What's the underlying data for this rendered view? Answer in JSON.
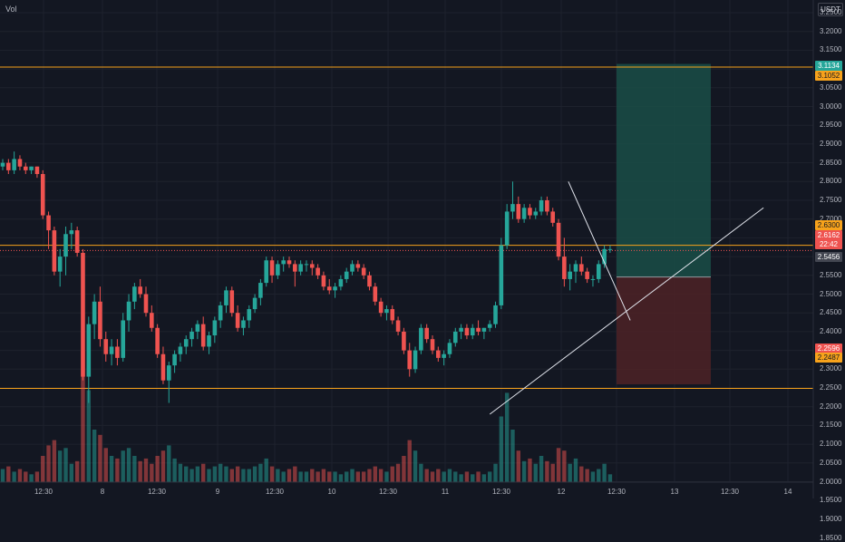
{
  "header": {
    "indicator_label": "Vol",
    "currency": "USDT"
  },
  "price_axis": [
    "3.2500",
    "3.2000",
    "3.1500",
    "3.1000",
    "3.0500",
    "3.0000",
    "2.9500",
    "2.9000",
    "2.8500",
    "2.8000",
    "2.7500",
    "2.7000",
    "2.6500",
    "2.6000",
    "2.5500",
    "2.5000",
    "2.4500",
    "2.4000",
    "2.3500",
    "2.3000",
    "2.2500",
    "2.2000",
    "2.1500",
    "2.1000",
    "2.0500",
    "2.0000",
    "1.9500",
    "1.9000",
    "1.8500"
  ],
  "time_axis": [
    "12:30",
    "8",
    "12:30",
    "9",
    "12:30",
    "10",
    "12:30",
    "11",
    "12:30",
    "12",
    "12:30",
    "13",
    "12:30",
    "14"
  ],
  "price_tags": {
    "take_profit": "3.1134",
    "upper_level": "3.1052",
    "resistance": "2.6300",
    "last_price": "2.6162",
    "countdown": "22:42",
    "entry": "2.5456",
    "stop": "2.2596",
    "support": "2.2487"
  },
  "colors": {
    "background": "#131722",
    "bull": "#26a69a",
    "bear": "#ef5350",
    "level_line": "#f7a21b",
    "take_profit_zone": "#1a4d47",
    "stop_zone": "#4d2226",
    "trend_line": "#e0e3eb"
  },
  "chart_data": {
    "type": "candlestick",
    "interval_between_date_labels": "1 day",
    "price_ylim": [
      1.84,
      3.28
    ],
    "x_tick_labels": [
      "12:30",
      "8",
      "12:30",
      "9",
      "12:30",
      "10",
      "12:30",
      "11",
      "12:30",
      "12",
      "12:30",
      "13",
      "12:30",
      "14"
    ],
    "horizontal_levels": [
      3.1052,
      2.63,
      2.2487
    ],
    "position": {
      "entry": 2.5456,
      "take_profit": 3.1134,
      "stop": 2.2596
    },
    "last_price": 2.6162,
    "trend_lines": [
      {
        "from": [
          "11 09:00",
          2.18
        ],
        "to": [
          "13 18:30",
          2.73
        ]
      },
      {
        "from": [
          "12 01:30",
          2.8
        ],
        "to": [
          "12 14:30",
          2.43
        ]
      }
    ],
    "ohlc": [
      [
        2.84,
        2.86,
        2.83,
        2.85
      ],
      [
        2.85,
        2.86,
        2.82,
        2.83
      ],
      [
        2.83,
        2.88,
        2.82,
        2.86
      ],
      [
        2.86,
        2.87,
        2.83,
        2.84
      ],
      [
        2.84,
        2.85,
        2.82,
        2.83
      ],
      [
        2.83,
        2.84,
        2.82,
        2.84
      ],
      [
        2.84,
        2.84,
        2.81,
        2.82
      ],
      [
        2.82,
        2.83,
        2.7,
        2.71
      ],
      [
        2.71,
        2.72,
        2.62,
        2.67
      ],
      [
        2.67,
        2.68,
        2.55,
        2.56
      ],
      [
        2.56,
        2.62,
        2.52,
        2.6
      ],
      [
        2.6,
        2.68,
        2.55,
        2.66
      ],
      [
        2.66,
        2.69,
        2.62,
        2.67
      ],
      [
        2.67,
        2.68,
        2.6,
        2.61
      ],
      [
        2.61,
        2.62,
        2.27,
        2.28
      ],
      [
        2.28,
        2.44,
        2.21,
        2.42
      ],
      [
        2.42,
        2.5,
        2.38,
        2.48
      ],
      [
        2.48,
        2.52,
        2.36,
        2.38
      ],
      [
        2.38,
        2.4,
        2.32,
        2.34
      ],
      [
        2.34,
        2.38,
        2.31,
        2.36
      ],
      [
        2.36,
        2.38,
        2.31,
        2.33
      ],
      [
        2.33,
        2.45,
        2.32,
        2.43
      ],
      [
        2.43,
        2.5,
        2.4,
        2.48
      ],
      [
        2.48,
        2.53,
        2.46,
        2.52
      ],
      [
        2.52,
        2.54,
        2.49,
        2.5
      ],
      [
        2.5,
        2.52,
        2.44,
        2.45
      ],
      [
        2.45,
        2.47,
        2.4,
        2.41
      ],
      [
        2.41,
        2.42,
        2.33,
        2.34
      ],
      [
        2.34,
        2.36,
        2.26,
        2.27
      ],
      [
        2.27,
        2.32,
        2.21,
        2.31
      ],
      [
        2.31,
        2.35,
        2.29,
        2.34
      ],
      [
        2.34,
        2.37,
        2.32,
        2.36
      ],
      [
        2.36,
        2.39,
        2.34,
        2.38
      ],
      [
        2.38,
        2.41,
        2.36,
        2.4
      ],
      [
        2.4,
        2.43,
        2.38,
        2.42
      ],
      [
        2.42,
        2.44,
        2.35,
        2.36
      ],
      [
        2.36,
        2.4,
        2.34,
        2.39
      ],
      [
        2.39,
        2.44,
        2.37,
        2.43
      ],
      [
        2.43,
        2.48,
        2.41,
        2.47
      ],
      [
        2.47,
        2.52,
        2.45,
        2.51
      ],
      [
        2.51,
        2.52,
        2.44,
        2.45
      ],
      [
        2.45,
        2.47,
        2.4,
        2.41
      ],
      [
        2.41,
        2.44,
        2.39,
        2.43
      ],
      [
        2.43,
        2.47,
        2.41,
        2.46
      ],
      [
        2.46,
        2.5,
        2.45,
        2.49
      ],
      [
        2.49,
        2.54,
        2.47,
        2.53
      ],
      [
        2.53,
        2.6,
        2.52,
        2.59
      ],
      [
        2.59,
        2.6,
        2.53,
        2.55
      ],
      [
        2.55,
        2.59,
        2.54,
        2.58
      ],
      [
        2.58,
        2.6,
        2.56,
        2.59
      ],
      [
        2.59,
        2.6,
        2.57,
        2.58
      ],
      [
        2.58,
        2.59,
        2.52,
        2.56
      ],
      [
        2.56,
        2.59,
        2.55,
        2.58
      ],
      [
        2.58,
        2.59,
        2.56,
        2.58
      ],
      [
        2.58,
        2.59,
        2.55,
        2.57
      ],
      [
        2.57,
        2.58,
        2.54,
        2.55
      ],
      [
        2.55,
        2.56,
        2.51,
        2.52
      ],
      [
        2.52,
        2.54,
        2.5,
        2.51
      ],
      [
        2.51,
        2.53,
        2.49,
        2.52
      ],
      [
        2.52,
        2.55,
        2.51,
        2.54
      ],
      [
        2.54,
        2.57,
        2.53,
        2.56
      ],
      [
        2.56,
        2.59,
        2.55,
        2.58
      ],
      [
        2.58,
        2.59,
        2.56,
        2.57
      ],
      [
        2.57,
        2.58,
        2.54,
        2.55
      ],
      [
        2.55,
        2.56,
        2.51,
        2.52
      ],
      [
        2.52,
        2.53,
        2.47,
        2.48
      ],
      [
        2.48,
        2.49,
        2.44,
        2.45
      ],
      [
        2.45,
        2.47,
        2.43,
        2.46
      ],
      [
        2.46,
        2.47,
        2.42,
        2.43
      ],
      [
        2.43,
        2.44,
        2.39,
        2.4
      ],
      [
        2.4,
        2.41,
        2.34,
        2.35
      ],
      [
        2.35,
        2.37,
        2.28,
        2.3
      ],
      [
        2.3,
        2.36,
        2.29,
        2.35
      ],
      [
        2.35,
        2.42,
        2.34,
        2.41
      ],
      [
        2.41,
        2.42,
        2.37,
        2.38
      ],
      [
        2.38,
        2.39,
        2.34,
        2.35
      ],
      [
        2.35,
        2.36,
        2.32,
        2.33
      ],
      [
        2.33,
        2.35,
        2.31,
        2.34
      ],
      [
        2.34,
        2.38,
        2.33,
        2.37
      ],
      [
        2.37,
        2.41,
        2.36,
        2.4
      ],
      [
        2.4,
        2.42,
        2.38,
        2.41
      ],
      [
        2.41,
        2.42,
        2.38,
        2.39
      ],
      [
        2.39,
        2.42,
        2.38,
        2.41
      ],
      [
        2.41,
        2.43,
        2.39,
        2.4
      ],
      [
        2.4,
        2.41,
        2.38,
        2.41
      ],
      [
        2.41,
        2.43,
        2.4,
        2.42
      ],
      [
        2.42,
        2.48,
        2.41,
        2.47
      ],
      [
        2.47,
        2.65,
        2.46,
        2.63
      ],
      [
        2.63,
        2.74,
        2.62,
        2.72
      ],
      [
        2.72,
        2.8,
        2.7,
        2.74
      ],
      [
        2.74,
        2.76,
        2.69,
        2.7
      ],
      [
        2.7,
        2.74,
        2.69,
        2.73
      ],
      [
        2.73,
        2.74,
        2.7,
        2.71
      ],
      [
        2.71,
        2.73,
        2.7,
        2.72
      ],
      [
        2.72,
        2.76,
        2.71,
        2.75
      ],
      [
        2.75,
        2.76,
        2.71,
        2.72
      ],
      [
        2.72,
        2.73,
        2.68,
        2.69
      ],
      [
        2.69,
        2.7,
        2.59,
        2.6
      ],
      [
        2.6,
        2.65,
        2.52,
        2.54
      ],
      [
        2.54,
        2.58,
        2.51,
        2.56
      ],
      [
        2.56,
        2.59,
        2.53,
        2.58
      ],
      [
        2.58,
        2.6,
        2.55,
        2.56
      ],
      [
        2.56,
        2.57,
        2.53,
        2.54
      ],
      [
        2.54,
        2.55,
        2.52,
        2.54
      ],
      [
        2.54,
        2.59,
        2.53,
        2.58
      ],
      [
        2.58,
        2.63,
        2.57,
        2.62
      ],
      [
        2.62,
        2.63,
        2.61,
        2.62
      ]
    ],
    "volume": [
      0.05,
      0.06,
      0.04,
      0.05,
      0.04,
      0.03,
      0.04,
      0.1,
      0.14,
      0.16,
      0.12,
      0.13,
      0.07,
      0.08,
      0.5,
      0.35,
      0.2,
      0.18,
      0.13,
      0.1,
      0.09,
      0.12,
      0.13,
      0.1,
      0.08,
      0.09,
      0.07,
      0.1,
      0.12,
      0.14,
      0.09,
      0.07,
      0.06,
      0.05,
      0.06,
      0.07,
      0.05,
      0.06,
      0.07,
      0.06,
      0.05,
      0.06,
      0.05,
      0.05,
      0.06,
      0.07,
      0.09,
      0.06,
      0.05,
      0.04,
      0.05,
      0.06,
      0.04,
      0.04,
      0.05,
      0.04,
      0.05,
      0.04,
      0.04,
      0.03,
      0.04,
      0.05,
      0.04,
      0.04,
      0.05,
      0.06,
      0.05,
      0.04,
      0.06,
      0.07,
      0.1,
      0.16,
      0.12,
      0.07,
      0.05,
      0.04,
      0.05,
      0.04,
      0.05,
      0.04,
      0.03,
      0.04,
      0.03,
      0.04,
      0.03,
      0.04,
      0.07,
      0.25,
      0.34,
      0.2,
      0.12,
      0.08,
      0.09,
      0.07,
      0.1,
      0.08,
      0.07,
      0.13,
      0.12,
      0.07,
      0.09,
      0.06,
      0.05,
      0.04,
      0.05,
      0.07,
      0.03
    ]
  }
}
